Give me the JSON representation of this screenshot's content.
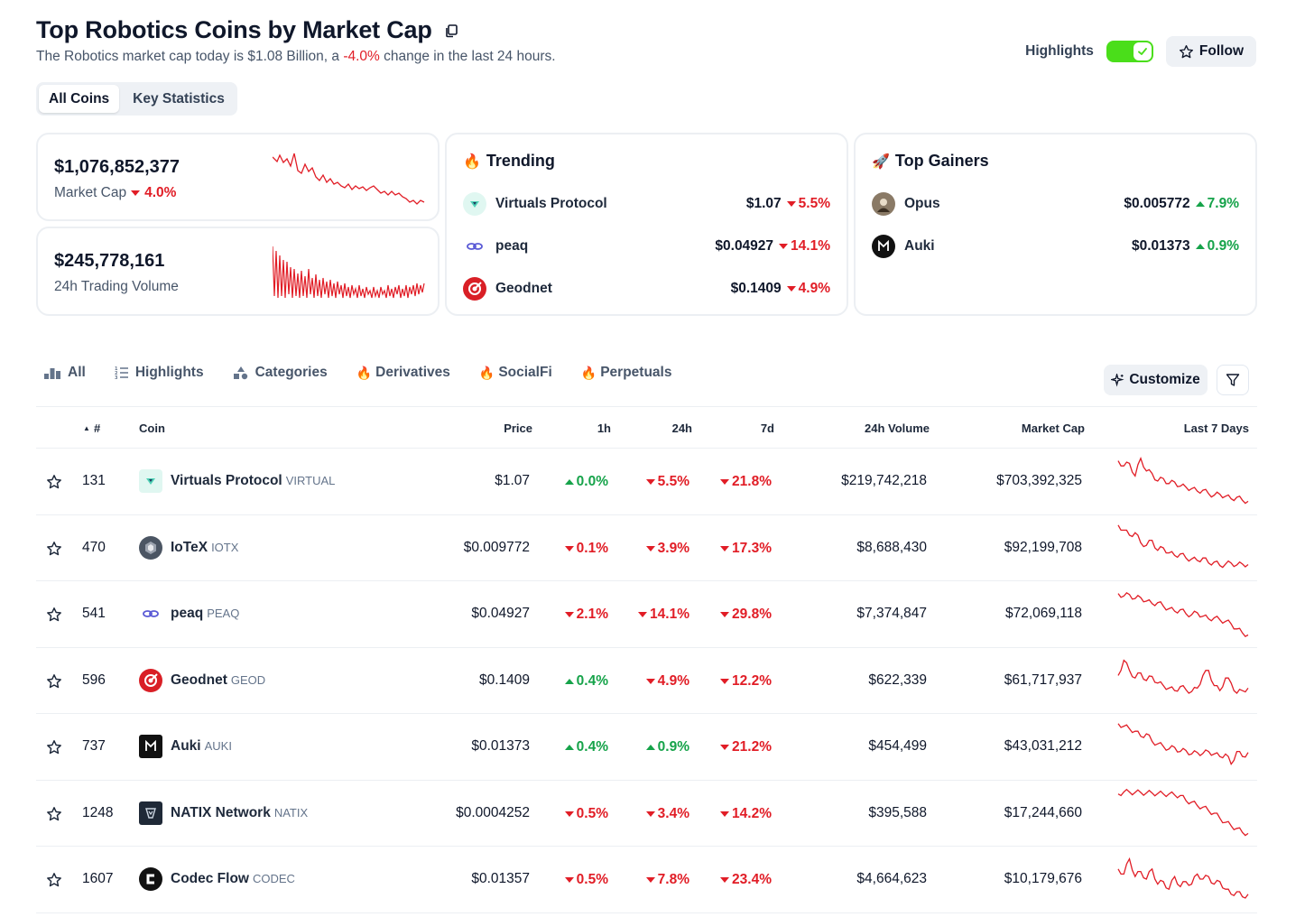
{
  "header": {
    "title": "Top Robotics Coins by Market Cap",
    "subtitle_pre": "The Robotics market cap today is $1.08 Billion, a ",
    "subtitle_change": "-4.0%",
    "subtitle_post": " change in the last 24 hours.",
    "highlights_label": "Highlights",
    "highlights_on": true,
    "follow_label": "Follow"
  },
  "view_tabs": [
    "All Coins",
    "Key Statistics"
  ],
  "stats": {
    "market_cap_value": "$1,076,852,377",
    "market_cap_label": "Market Cap",
    "market_cap_change": "4.0%",
    "volume_value": "$245,778,161",
    "volume_label": "24h Trading Volume"
  },
  "trending": {
    "title": "Trending",
    "items": [
      {
        "name": "Virtuals Protocol",
        "price": "$1.07",
        "change": "5.5%",
        "dir": "down"
      },
      {
        "name": "peaq",
        "price": "$0.04927",
        "change": "14.1%",
        "dir": "down"
      },
      {
        "name": "Geodnet",
        "price": "$0.1409",
        "change": "4.9%",
        "dir": "down"
      }
    ]
  },
  "gainers": {
    "title": "Top Gainers",
    "items": [
      {
        "name": "Opus",
        "price": "$0.005772",
        "change": "7.9%",
        "dir": "up"
      },
      {
        "name": "Auki",
        "price": "$0.01373",
        "change": "0.9%",
        "dir": "up"
      }
    ]
  },
  "filter_tabs": [
    "All",
    "Highlights",
    "Categories",
    "Derivatives",
    "SocialFi",
    "Perpetuals"
  ],
  "customize_label": "Customize",
  "table": {
    "headers": {
      "rank": "#",
      "coin": "Coin",
      "price": "Price",
      "h1": "1h",
      "h24": "24h",
      "d7": "7d",
      "volume": "24h Volume",
      "mcap": "Market Cap",
      "last7": "Last 7 Days"
    },
    "rows": [
      {
        "rank": "131",
        "name": "Virtuals Protocol",
        "symbol": "VIRTUAL",
        "price": "$1.07",
        "h1": "0.0%",
        "h1_dir": "up",
        "h24": "5.5%",
        "h24_dir": "down",
        "d7": "21.8%",
        "d7_dir": "down",
        "volume": "$219,742,218",
        "mcap": "$703,392,325",
        "spark": [
          90,
          80,
          85,
          60,
          95,
          70,
          65,
          50,
          55,
          45,
          48,
          40,
          38,
          35,
          30,
          32,
          25,
          22,
          24,
          20,
          15,
          18,
          12,
          10
        ]
      },
      {
        "rank": "470",
        "name": "IoTeX",
        "symbol": "IOTX",
        "price": "$0.009772",
        "h1": "0.1%",
        "h1_dir": "down",
        "h24": "3.9%",
        "h24_dir": "down",
        "d7": "17.3%",
        "d7_dir": "down",
        "volume": "$8,688,430",
        "mcap": "$92,199,708",
        "spark": [
          95,
          85,
          75,
          80,
          60,
          55,
          65,
          45,
          50,
          40,
          35,
          38,
          30,
          28,
          25,
          30,
          20,
          22,
          15,
          18,
          20,
          16,
          18,
          17
        ]
      },
      {
        "rank": "541",
        "name": "peaq",
        "symbol": "PEAQ",
        "price": "$0.04927",
        "h1": "2.1%",
        "h1_dir": "down",
        "h24": "14.1%",
        "h24_dir": "down",
        "d7": "29.8%",
        "d7_dir": "down",
        "volume": "$7,374,847",
        "mcap": "$72,069,118",
        "spark": [
          90,
          85,
          88,
          80,
          82,
          75,
          70,
          72,
          65,
          60,
          55,
          58,
          50,
          48,
          52,
          45,
          40,
          42,
          38,
          35,
          30,
          20,
          12,
          8
        ]
      },
      {
        "rank": "596",
        "name": "Geodnet",
        "symbol": "GEOD",
        "price": "$0.1409",
        "h1": "0.4%",
        "h1_dir": "up",
        "h24": "4.9%",
        "h24_dir": "down",
        "d7": "12.2%",
        "d7_dir": "down",
        "volume": "$622,339",
        "mcap": "$61,717,937",
        "spark": [
          60,
          90,
          70,
          55,
          65,
          50,
          58,
          45,
          40,
          35,
          30,
          38,
          32,
          28,
          35,
          60,
          70,
          40,
          30,
          55,
          45,
          25,
          30,
          35
        ]
      },
      {
        "rank": "737",
        "name": "Auki",
        "symbol": "AUKI",
        "price": "$0.01373",
        "h1": "0.4%",
        "h1_dir": "up",
        "h24": "0.9%",
        "h24_dir": "up",
        "d7": "21.2%",
        "d7_dir": "down",
        "volume": "$454,499",
        "mcap": "$43,031,212",
        "spark": [
          95,
          90,
          85,
          80,
          70,
          75,
          60,
          55,
          50,
          45,
          48,
          40,
          42,
          35,
          38,
          36,
          40,
          35,
          30,
          35,
          15,
          40,
          30,
          38
        ]
      },
      {
        "rank": "1248",
        "name": "NATIX Network",
        "symbol": "NATIX",
        "price": "$0.0004252",
        "h1": "0.5%",
        "h1_dir": "down",
        "h24": "3.4%",
        "h24_dir": "down",
        "d7": "14.2%",
        "d7_dir": "down",
        "volume": "$395,588",
        "mcap": "$17,244,660",
        "spark": [
          88,
          92,
          92,
          91,
          91,
          90,
          90,
          89,
          88,
          88,
          86,
          85,
          75,
          72,
          65,
          62,
          55,
          50,
          40,
          32,
          25,
          20,
          12,
          10
        ]
      },
      {
        "rank": "1607",
        "name": "Codec Flow",
        "symbol": "CODEC",
        "price": "$0.01357",
        "h1": "0.5%",
        "h1_dir": "down",
        "h24": "7.8%",
        "h24_dir": "down",
        "d7": "23.4%",
        "d7_dir": "down",
        "volume": "$4,664,623",
        "mcap": "$10,179,676",
        "spark": [
          70,
          60,
          90,
          55,
          65,
          50,
          70,
          40,
          45,
          30,
          55,
          35,
          45,
          40,
          60,
          50,
          55,
          40,
          45,
          30,
          20,
          25,
          15,
          20
        ]
      }
    ]
  },
  "colors": {
    "negative": "#e11d26",
    "positive": "#16a34a",
    "toggle": "#4ade1a"
  }
}
